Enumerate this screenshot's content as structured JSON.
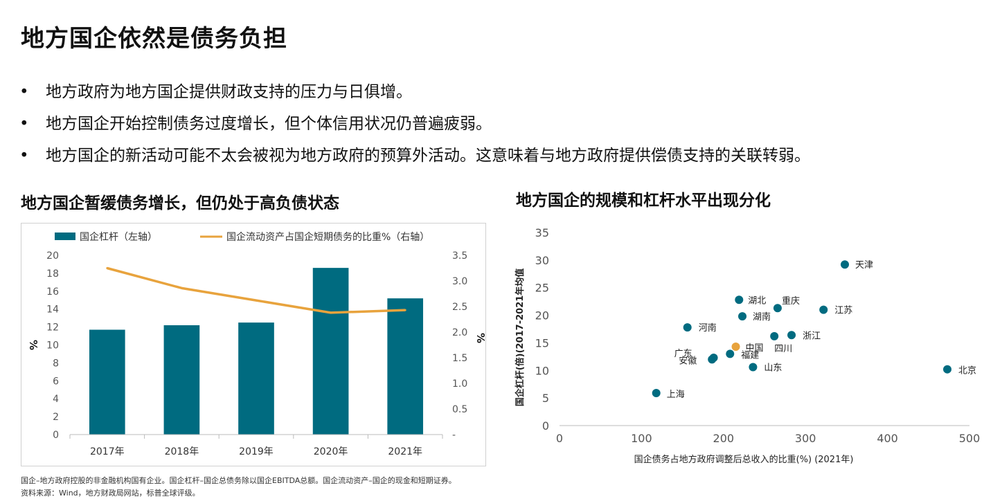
{
  "page": {
    "title": "地方国企依然是债务负担",
    "bullets": [
      "地方政府为地方国企提供财政支持的压力与日俱增。",
      "地方国企开始控制债务过度增长，但个体信用状况仍普遍疲弱。",
      "地方国企的新活动可能不太会被视为地方政府的预算外活动。这意味着与地方政府提供偿债支持的关联转弱。"
    ],
    "bullet_symbol": "•",
    "footnotes": [
      "国企–地方政府控股的非金融机构国有企业。国企杠杆–国企总债务除以国企EBITDA总额。国企流动资产–国企的现金和短期证券。",
      "资料来源：Wind，地方财政局网站，标普全球评级。"
    ]
  },
  "chart_data": [
    {
      "type": "bar",
      "title": "地方国企暂缓债务增长，但仍处于高负债状态",
      "categories": [
        "2017年",
        "2018年",
        "2019年",
        "2020年",
        "2021年"
      ],
      "series": [
        {
          "name": "国企杠杆（左轴）",
          "type": "bar",
          "axis": "left",
          "color": "#006b80",
          "values": [
            11.7,
            12.2,
            12.5,
            18.6,
            15.2
          ]
        },
        {
          "name": "国企流动资产占国企短期债务的比重%（右轴）",
          "type": "line",
          "axis": "right",
          "color": "#e8a33d",
          "values": [
            3.25,
            2.86,
            2.62,
            2.38,
            2.43
          ]
        }
      ],
      "ylabel": "%",
      "ylim": [
        0,
        20
      ],
      "yticks": [
        "0",
        "2",
        "4",
        "6",
        "8",
        "10",
        "12",
        "14",
        "16",
        "18",
        "20"
      ],
      "y2label": "%",
      "y2lim": [
        0,
        3.5
      ],
      "y2ticks": [
        "-",
        "0.5",
        "1.0",
        "1.5",
        "2.0",
        "2.5",
        "3.0",
        "3.5"
      ],
      "grid": false,
      "legend": "top"
    },
    {
      "type": "scatter",
      "title": "地方国企的规模和杠杆水平出现分化",
      "xlabel": "国企债务占地方政府调整后总收入的比重(%) (2021年)",
      "ylabel": "国企杠杆(倍)(2017-2021年均值",
      "xlim": [
        0,
        500
      ],
      "ylim": [
        0,
        35
      ],
      "xticks": [
        "0",
        "100",
        "200",
        "300",
        "400",
        "500"
      ],
      "yticks": [
        "0",
        "5",
        "10",
        "15",
        "20",
        "25",
        "30",
        "35"
      ],
      "grid": false,
      "colors": {
        "default": "#006b80",
        "highlight": "#e8a33d"
      },
      "points": [
        {
          "label": "天津",
          "x": 348,
          "y": 29.2
        },
        {
          "label": "湖北",
          "x": 219,
          "y": 22.8
        },
        {
          "label": "重庆",
          "x": 266,
          "y": 21.3
        },
        {
          "label": "江苏",
          "x": 322,
          "y": 21.0
        },
        {
          "label": "湖南",
          "x": 223,
          "y": 19.8
        },
        {
          "label": "河南",
          "x": 156,
          "y": 17.8
        },
        {
          "label": "四川",
          "x": 262,
          "y": 16.2
        },
        {
          "label": "浙江",
          "x": 283,
          "y": 16.4
        },
        {
          "label": "中国",
          "x": 215,
          "y": 14.3,
          "highlight": true
        },
        {
          "label": "福建",
          "x": 208,
          "y": 13.0
        },
        {
          "label": "广东",
          "x": 188,
          "y": 12.3
        },
        {
          "label": "安徽",
          "x": 186,
          "y": 12.0
        },
        {
          "label": "山东",
          "x": 236,
          "y": 10.6
        },
        {
          "label": "北京",
          "x": 473,
          "y": 10.2
        },
        {
          "label": "上海",
          "x": 118,
          "y": 5.9
        }
      ]
    }
  ]
}
